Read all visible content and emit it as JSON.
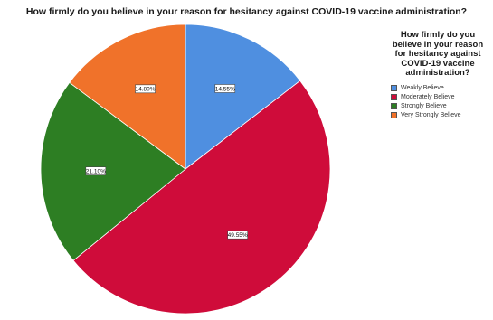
{
  "chart_data": {
    "type": "pie",
    "title": "How firmly do you believe in your reason for hesitancy against COVID-19 vaccine administration?",
    "legend": {
      "title": "How firmly do you believe in your reason for hesitancy against COVID-19 vaccine administration?",
      "position": "right"
    },
    "slices": [
      {
        "label": "Weakly Believe",
        "value": 14.55,
        "display": "14.55%",
        "color": "#4f8fe0"
      },
      {
        "label": "Moderately Believe",
        "value": 49.55,
        "display": "49.55%",
        "color": "#cf0c3a"
      },
      {
        "label": "Strongly Believe",
        "value": 21.1,
        "display": "21.10%",
        "color": "#2d7e23"
      },
      {
        "label": "Very Strongly Believe",
        "value": 14.8,
        "display": "14.80%",
        "color": "#f0722a"
      }
    ]
  }
}
